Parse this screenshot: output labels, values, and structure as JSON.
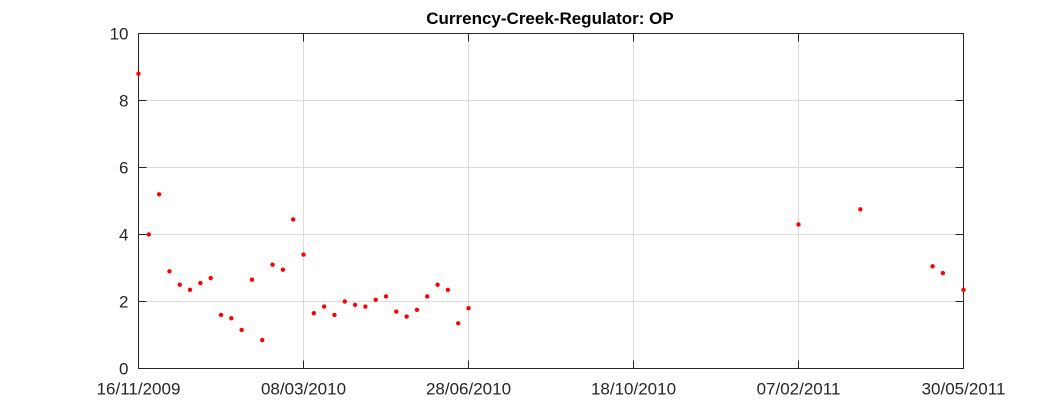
{
  "chart_data": {
    "type": "scatter",
    "title": "Currency-Creek-Regulator: OP",
    "xlabel": "",
    "ylabel": "",
    "xlim": [
      "2009-11-16",
      "2011-05-30"
    ],
    "ylim": [
      0,
      10
    ],
    "x_ticks": [
      {
        "date": "2009-11-16",
        "label": "16/11/2009"
      },
      {
        "date": "2010-03-08",
        "label": "08/03/2010"
      },
      {
        "date": "2010-06-28",
        "label": "28/06/2010"
      },
      {
        "date": "2010-10-18",
        "label": "18/10/2010"
      },
      {
        "date": "2011-02-07",
        "label": "07/02/2011"
      },
      {
        "date": "2011-05-30",
        "label": "30/05/2011"
      }
    ],
    "y_ticks": [
      0,
      2,
      4,
      6,
      8,
      10
    ],
    "grid": true,
    "marker_color": "#ff0000",
    "series": [
      {
        "name": "",
        "points": [
          {
            "x": "2009-11-16",
            "y": 8.8
          },
          {
            "x": "2009-11-23",
            "y": 4.0
          },
          {
            "x": "2009-11-30",
            "y": 5.2
          },
          {
            "x": "2009-12-07",
            "y": 2.9
          },
          {
            "x": "2009-12-14",
            "y": 2.5
          },
          {
            "x": "2009-12-21",
            "y": 2.35
          },
          {
            "x": "2009-12-28",
            "y": 2.55
          },
          {
            "x": "2010-01-04",
            "y": 2.7
          },
          {
            "x": "2010-01-11",
            "y": 1.6
          },
          {
            "x": "2010-01-18",
            "y": 1.5
          },
          {
            "x": "2010-01-25",
            "y": 1.15
          },
          {
            "x": "2010-02-01",
            "y": 2.65
          },
          {
            "x": "2010-02-08",
            "y": 0.85
          },
          {
            "x": "2010-02-15",
            "y": 3.1
          },
          {
            "x": "2010-02-22",
            "y": 2.95
          },
          {
            "x": "2010-03-01",
            "y": 4.45
          },
          {
            "x": "2010-03-08",
            "y": 3.4
          },
          {
            "x": "2010-03-15",
            "y": 1.65
          },
          {
            "x": "2010-03-22",
            "y": 1.85
          },
          {
            "x": "2010-03-29",
            "y": 1.6
          },
          {
            "x": "2010-04-05",
            "y": 2.0
          },
          {
            "x": "2010-04-12",
            "y": 1.9
          },
          {
            "x": "2010-04-19",
            "y": 1.85
          },
          {
            "x": "2010-04-26",
            "y": 2.05
          },
          {
            "x": "2010-05-03",
            "y": 2.15
          },
          {
            "x": "2010-05-10",
            "y": 1.7
          },
          {
            "x": "2010-05-17",
            "y": 1.55
          },
          {
            "x": "2010-05-24",
            "y": 1.75
          },
          {
            "x": "2010-05-31",
            "y": 2.15
          },
          {
            "x": "2010-06-07",
            "y": 2.5
          },
          {
            "x": "2010-06-14",
            "y": 2.35
          },
          {
            "x": "2010-06-21",
            "y": 1.35
          },
          {
            "x": "2010-06-28",
            "y": 1.8
          },
          {
            "x": "2011-02-07",
            "y": 4.3
          },
          {
            "x": "2011-03-21",
            "y": 4.75
          },
          {
            "x": "2011-05-09",
            "y": 3.05
          },
          {
            "x": "2011-05-16",
            "y": 2.85
          },
          {
            "x": "2011-05-30",
            "y": 2.35
          }
        ]
      }
    ]
  }
}
